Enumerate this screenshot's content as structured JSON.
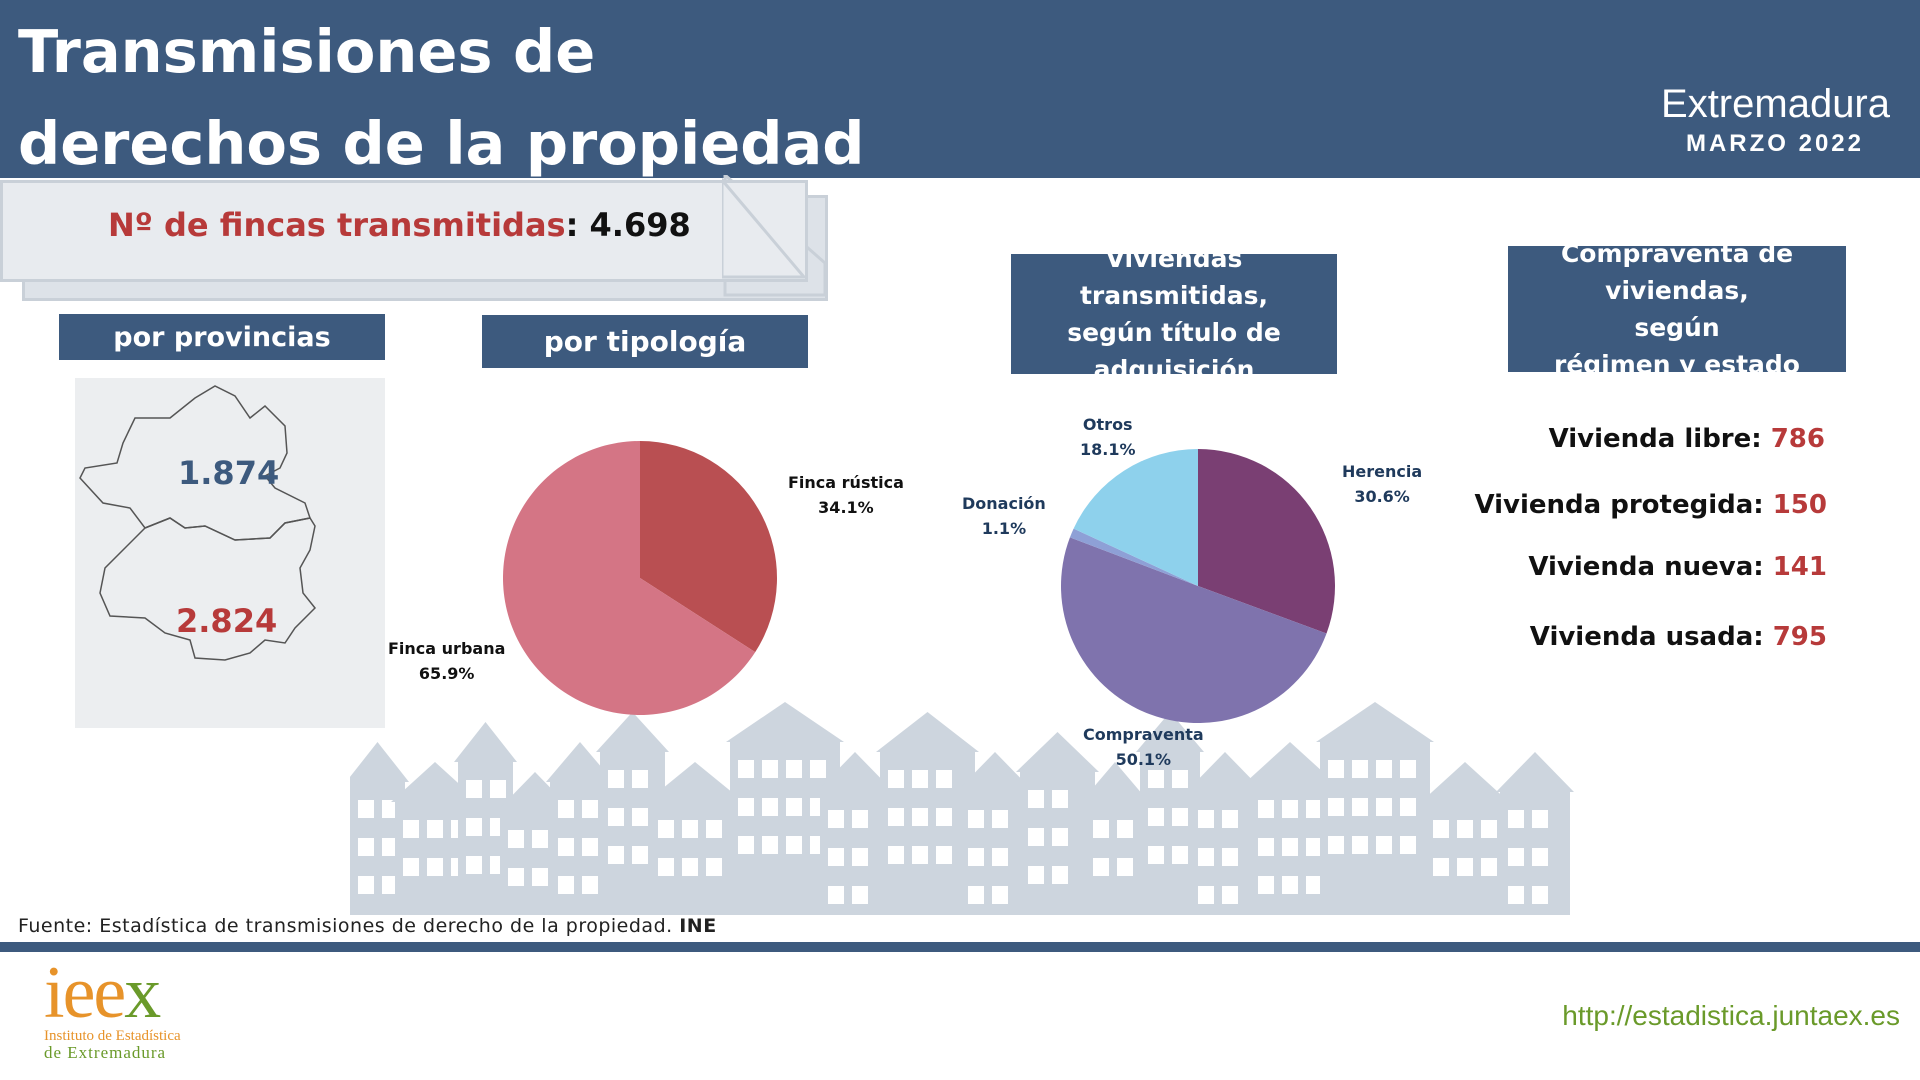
{
  "header": {
    "title_line1": "Transmisiones de",
    "title_line2": "derechos de la propiedad",
    "region": "Extremadura",
    "date": "MARZO 2022"
  },
  "summary": {
    "label": "Nº de fincas transmitidas",
    "value": "4.698"
  },
  "sections": {
    "provincias": "por provincias",
    "tipologia": "por tipología",
    "viviendas_l1": "Viviendas transmitidas,",
    "viviendas_l2": "según título de",
    "viviendas_l3": "adquisición",
    "compraventa_l1": "Compraventa de viviendas,",
    "compraventa_l2": "según",
    "compraventa_l3": "régimen y estado"
  },
  "provinces": {
    "north_value": "1.874",
    "south_value": "2.824"
  },
  "housing_stats": [
    {
      "label": "Vivienda libre",
      "value": "786"
    },
    {
      "label": "Vivienda protegida",
      "value": "150"
    },
    {
      "label": "Vivienda nueva",
      "value": "141"
    },
    {
      "label": "Vivienda usada",
      "value": "795"
    }
  ],
  "chart_data": [
    {
      "type": "pie",
      "categories": [
        "Finca rústica",
        "Finca urbana"
      ],
      "values": [
        34.1,
        65.9
      ],
      "value_labels": [
        "34.1%",
        "65.9%"
      ],
      "colors": [
        "#b94f52",
        "#d47585"
      ]
    },
    {
      "type": "pie",
      "categories": [
        "Herencia",
        "Compraventa",
        "Donación",
        "Otros"
      ],
      "values": [
        30.6,
        50.1,
        1.1,
        18.1
      ],
      "value_labels": [
        "30.6%",
        "50.1%",
        "1.1%",
        "18.1%"
      ],
      "colors": [
        "#7a3f73",
        "#7f73ad",
        "#8ea0d6",
        "#8ed1ec"
      ]
    }
  ],
  "footer": {
    "source_prefix": "Fuente: Estadística de transmisiones de derecho de la propiedad. ",
    "source_org": "INE",
    "logo_text": "ieex",
    "logo_line1": "Instituto de Estadística",
    "logo_line2": "de Extremadura",
    "url": "http://estadistica.juntaex.es"
  },
  "colors": {
    "header": "#3d5a7e",
    "accent_red": "#b73a3a",
    "houses": "#cdd5de"
  }
}
